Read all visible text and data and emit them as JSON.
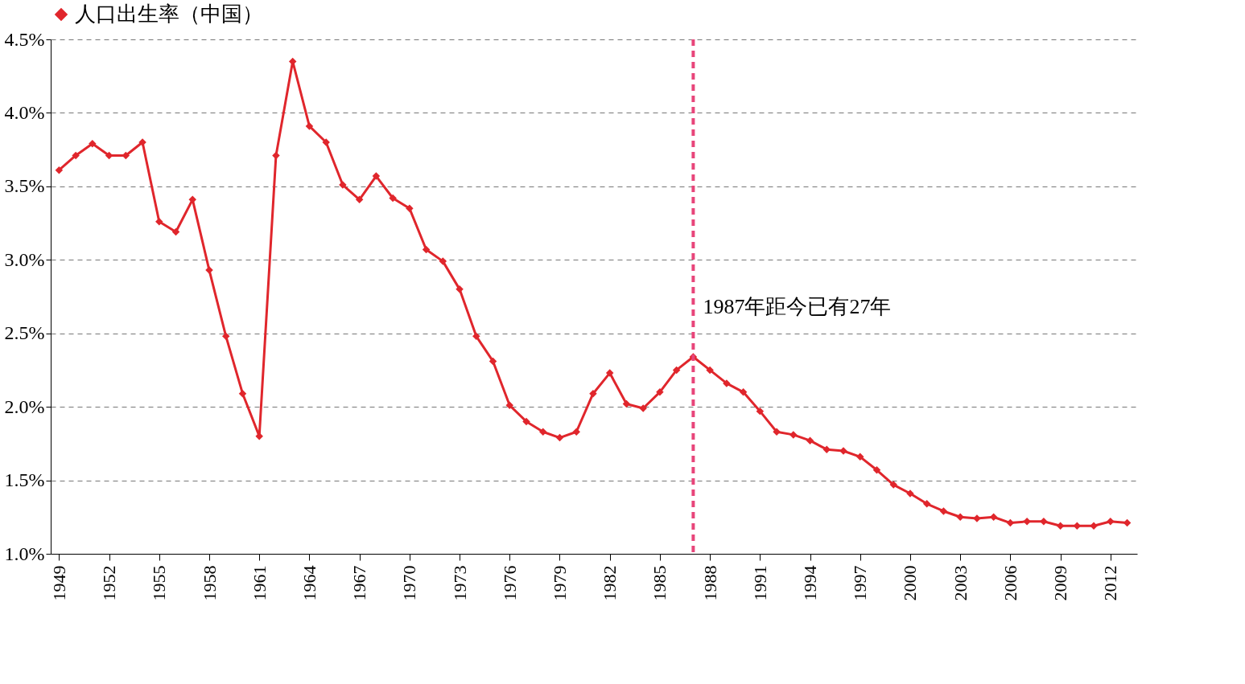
{
  "chart_data": {
    "type": "line",
    "x": [
      1949,
      1950,
      1951,
      1952,
      1953,
      1954,
      1955,
      1956,
      1957,
      1958,
      1959,
      1960,
      1961,
      1962,
      1963,
      1964,
      1965,
      1966,
      1967,
      1968,
      1969,
      1970,
      1971,
      1972,
      1973,
      1974,
      1975,
      1976,
      1977,
      1978,
      1979,
      1980,
      1981,
      1982,
      1983,
      1984,
      1985,
      1986,
      1987,
      1988,
      1989,
      1990,
      1991,
      1992,
      1993,
      1994,
      1995,
      1996,
      1997,
      1998,
      1999,
      2000,
      2001,
      2002,
      2003,
      2004,
      2005,
      2006,
      2007,
      2008,
      2009,
      2010,
      2011,
      2012,
      2013
    ],
    "series": [
      {
        "name": "人口出生率（中国）",
        "color": "#e0262c",
        "values": [
          3.61,
          3.71,
          3.79,
          3.71,
          3.71,
          3.8,
          3.26,
          3.19,
          3.41,
          2.93,
          2.48,
          2.09,
          1.8,
          3.71,
          4.35,
          3.91,
          3.8,
          3.51,
          3.41,
          3.57,
          3.42,
          3.35,
          3.07,
          2.99,
          2.8,
          2.48,
          2.31,
          2.01,
          1.9,
          1.83,
          1.79,
          1.83,
          2.09,
          2.23,
          2.02,
          1.99,
          2.1,
          2.25,
          2.34,
          2.25,
          2.16,
          2.1,
          1.97,
          1.83,
          1.81,
          1.77,
          1.71,
          1.7,
          1.66,
          1.57,
          1.47,
          1.41,
          1.34,
          1.29,
          1.25,
          1.24,
          1.25,
          1.21,
          1.22,
          1.22,
          1.19,
          1.19,
          1.19,
          1.22,
          1.21
        ]
      }
    ],
    "xlim": [
      1948.5,
      2013.6
    ],
    "xticks": [
      1949,
      1952,
      1955,
      1958,
      1961,
      1964,
      1967,
      1970,
      1973,
      1976,
      1979,
      1982,
      1985,
      1988,
      1991,
      1994,
      1997,
      2000,
      2003,
      2006,
      2009,
      2012
    ],
    "ylim": [
      1.0,
      4.5
    ],
    "yticks": [
      {
        "value": 1.0,
        "label": "1.0%"
      },
      {
        "value": 1.5,
        "label": "1.5%"
      },
      {
        "value": 2.0,
        "label": "2.0%"
      },
      {
        "value": 2.5,
        "label": "2.5%"
      },
      {
        "value": 3.0,
        "label": "3.0%"
      },
      {
        "value": 3.5,
        "label": "3.5%"
      },
      {
        "value": 4.0,
        "label": "4.0%"
      },
      {
        "value": 4.5,
        "label": "4.5%"
      }
    ],
    "ref_lines": [
      {
        "axis": "x",
        "value": 1987,
        "label": "1987年距今已有27年",
        "color": "#e8457a",
        "line_style": "dashed"
      }
    ],
    "grid": "y",
    "legend": "top",
    "marker": "diamond",
    "line_style": "solid"
  }
}
